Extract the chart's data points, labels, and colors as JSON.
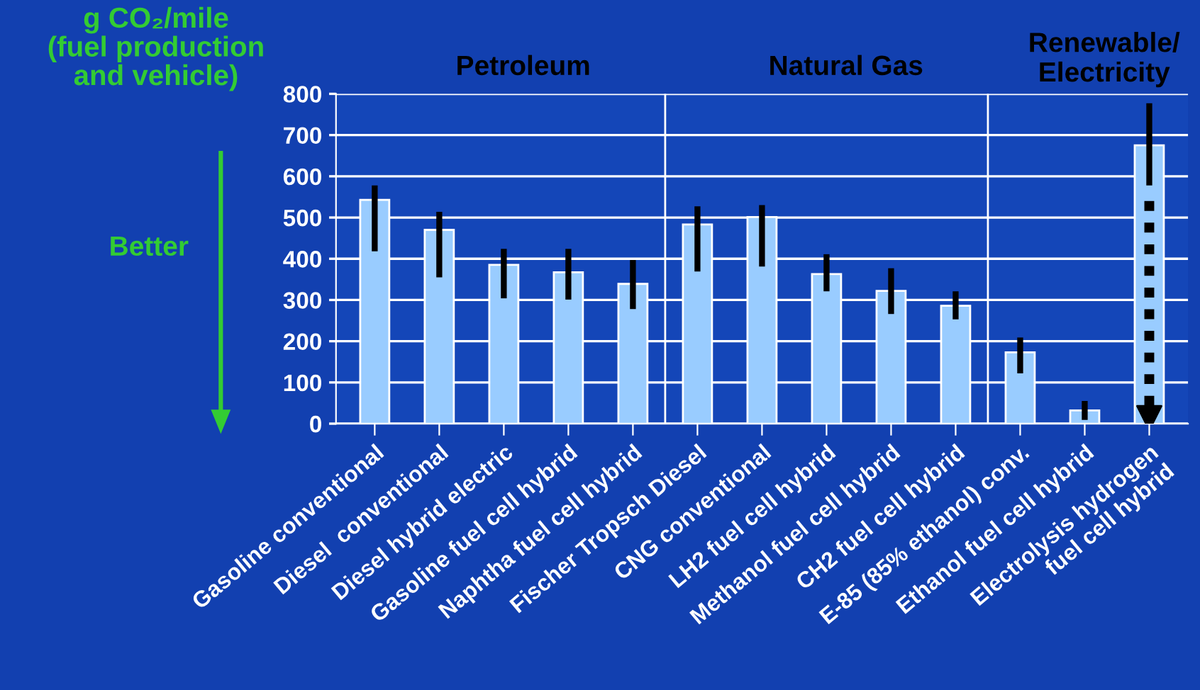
{
  "chart_data": {
    "type": "bar",
    "ylabel": "g CO₂/mile\n(fuel production\nand vehicle)",
    "categories": [
      "Gasoline conventional",
      "Diesel  conventional",
      "Diesel hybrid electric",
      "Gasoline fuel cell hybrid",
      "Naphtha fuel cell hybrid",
      "Fischer Tropsch Diesel",
      "CNG conventional",
      "LH2 fuel cell hybrid",
      "Methanol fuel cell hybrid",
      "CH2 fuel cell hybrid",
      "E-85 (85% ethanol) conv.",
      "Ethanol fuel cell hybrid",
      "Electrolysis hydrogen\nfuel cell hybrid"
    ],
    "values": [
      543,
      470,
      385,
      367,
      339,
      483,
      501,
      363,
      322,
      286,
      173,
      32,
      675
    ],
    "errors": [
      [
        418,
        578
      ],
      [
        355,
        514
      ],
      [
        304,
        424
      ],
      [
        301,
        424
      ],
      [
        278,
        397
      ],
      [
        369,
        527
      ],
      [
        381,
        530
      ],
      [
        321,
        411
      ],
      [
        266,
        377
      ],
      [
        253,
        321
      ],
      [
        122,
        209
      ],
      [
        9,
        55
      ],
      [
        578,
        777
      ]
    ],
    "color": "#99ccff",
    "ylim": [
      0,
      800
    ],
    "yticks": [
      0,
      100,
      200,
      300,
      400,
      500,
      600,
      700,
      800
    ],
    "grid": "y",
    "annotations": [
      "Petroleum",
      "Natural Gas",
      "Renewable/\nElectricity",
      "Better"
    ]
  }
}
